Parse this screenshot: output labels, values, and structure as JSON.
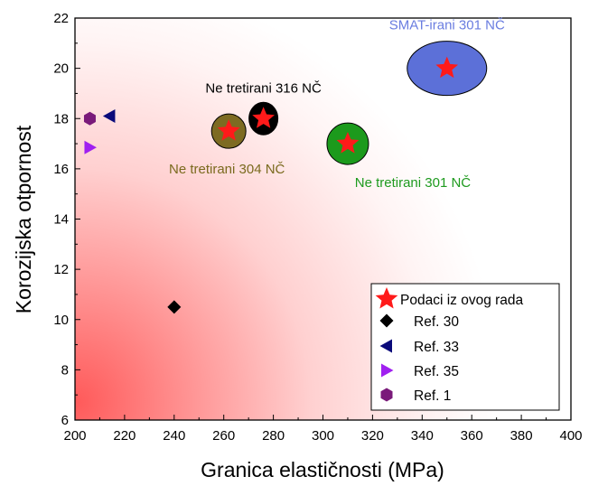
{
  "chart_data": {
    "type": "scatter",
    "xlabel": "Granica elastičnosti (MPa)",
    "ylabel": "Korozijska otpornost",
    "xlim": [
      200,
      400
    ],
    "ylim": [
      6,
      22
    ],
    "xticks": [
      200,
      220,
      240,
      260,
      280,
      300,
      320,
      340,
      360,
      380,
      400
    ],
    "yticks": [
      6,
      8,
      10,
      12,
      14,
      16,
      18,
      20,
      22
    ],
    "background": "red radial gradient from bottom-left corner fading to white",
    "legend_position": "bottom-right",
    "series": [
      {
        "name": "Podaci iz ovog rada",
        "marker": "star",
        "color": "#ff1a1a",
        "points": [
          {
            "x": 350,
            "y": 20.0
          },
          {
            "x": 276,
            "y": 18.0
          },
          {
            "x": 262,
            "y": 17.5
          },
          {
            "x": 310,
            "y": 17.0
          }
        ]
      },
      {
        "name": "Ref. 30",
        "marker": "diamond",
        "color": "#000000",
        "points": [
          {
            "x": 240,
            "y": 10.5
          }
        ]
      },
      {
        "name": "Ref. 33",
        "marker": "triangle-left",
        "color": "#0a0a7a",
        "points": [
          {
            "x": 214,
            "y": 18.1
          }
        ]
      },
      {
        "name": "Ref. 35",
        "marker": "triangle-right",
        "color": "#a020f0",
        "points": [
          {
            "x": 206,
            "y": 16.85
          }
        ]
      },
      {
        "name": "Ref. 1",
        "marker": "hexagon",
        "color": "#7a1a7a",
        "points": [
          {
            "x": 206,
            "y": 18.0
          }
        ]
      }
    ],
    "annotations": [
      {
        "text": "SMAT-irani 301 NČ",
        "color": "#6a7de0",
        "ellipse_color": "#5c70d8",
        "x": 350,
        "y": 20.0
      },
      {
        "text": "Ne tretirani 316 NČ",
        "color": "#000000",
        "ellipse_color": "#000000",
        "x": 276,
        "y": 18.0
      },
      {
        "text": "Ne tretirani 304 NČ",
        "color": "#7a6a1e",
        "ellipse_color": "#7d6b22",
        "x": 262,
        "y": 17.5
      },
      {
        "text": "Ne tretirani 301 NČ",
        "color": "#1e9a1e",
        "ellipse_color": "#1c9a1c",
        "x": 310,
        "y": 17.0
      }
    ]
  }
}
